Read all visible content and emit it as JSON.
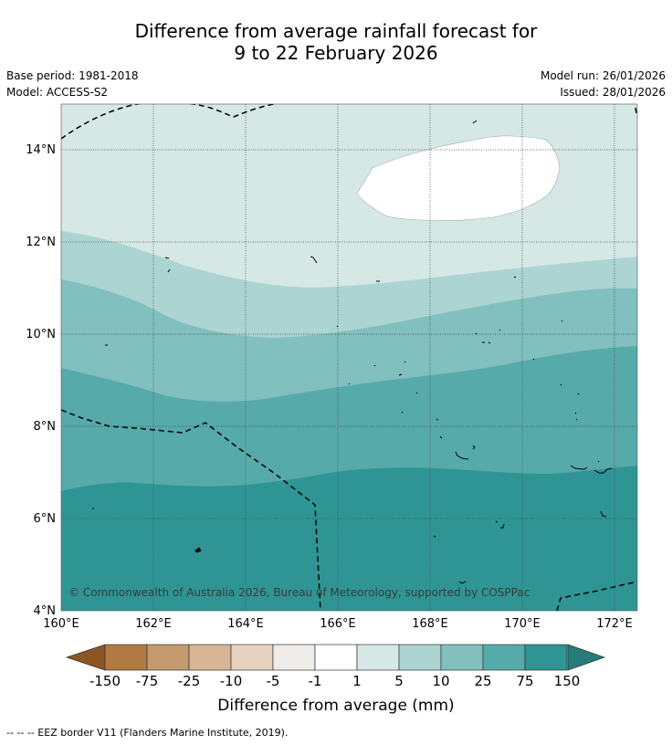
{
  "title": {
    "line1": "Difference from average rainfall forecast for",
    "line2": "9 to 22 February 2026"
  },
  "meta": {
    "base_period": "Base period: 1981-2018",
    "model": "Model: ACCESS-S2",
    "model_run": "Model run: 26/01/2026",
    "issued": "Issued: 28/01/2026"
  },
  "map": {
    "lat_range": [
      4,
      15
    ],
    "lon_range": [
      160,
      172.5
    ],
    "lat_ticks": [
      "4°N",
      "6°N",
      "8°N",
      "10°N",
      "12°N",
      "14°N"
    ],
    "lon_ticks": [
      "160°E",
      "162°E",
      "164°E",
      "166°E",
      "168°E",
      "170°E",
      "172°E"
    ],
    "copyright": "© Commonwealth of Australia 2026, Bureau of Meteorology, supported by COSPPac"
  },
  "colorbar": {
    "labels": [
      "-150",
      "-75",
      "-25",
      "-10",
      "-5",
      "-1",
      "1",
      "5",
      "10",
      "25",
      "75",
      "150"
    ],
    "colors": [
      "#8c5523",
      "#b07a42",
      "#c49a6e",
      "#d7b595",
      "#e8d2c0",
      "#efebe8",
      "#ffffff",
      "#d5e8e6",
      "#acd4d3",
      "#82bfbf",
      "#57aaaa",
      "#2f9594",
      "#277b79"
    ],
    "title": "Difference from average (mm)"
  },
  "footnote": "--  --  -- EEZ border V11 (Flanders Marine Institute, 2019)."
}
